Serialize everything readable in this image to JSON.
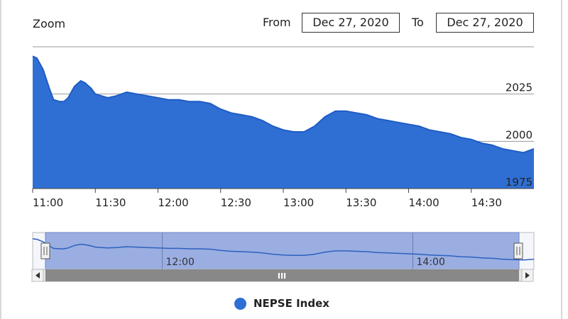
{
  "header": {
    "zoom_label": "Zoom",
    "from_label": "From",
    "from_value": "Dec 27, 2020",
    "to_label": "To",
    "to_value": "Dec 27, 2020"
  },
  "navigator": {
    "tick_labels": [
      "12:00",
      "14:00"
    ],
    "scroll_grip": "III"
  },
  "legend": {
    "label": "NEPSE Index"
  },
  "colors": {
    "series": "#2f6fd4",
    "navigator_fill": "#9aaee2",
    "scrollbar": "#888888"
  },
  "chart_data": {
    "type": "area",
    "series": [
      {
        "name": "NEPSE Index"
      }
    ],
    "x_tick_labels": [
      "11:00",
      "11:30",
      "12:00",
      "12:30",
      "13:00",
      "13:30",
      "14:00",
      "14:30"
    ],
    "y_tick_labels": [
      "2025",
      "2000",
      "1975"
    ],
    "ylim": [
      1975,
      2050
    ],
    "grid": true,
    "points": [
      [
        "11:00",
        2045
      ],
      [
        "11:02",
        2044
      ],
      [
        "11:05",
        2038
      ],
      [
        "11:08",
        2028
      ],
      [
        "11:10",
        2022
      ],
      [
        "11:13",
        2021
      ],
      [
        "11:15",
        2021
      ],
      [
        "11:17",
        2023
      ],
      [
        "11:20",
        2029
      ],
      [
        "11:23",
        2032
      ],
      [
        "11:25",
        2031
      ],
      [
        "11:28",
        2028
      ],
      [
        "11:30",
        2025
      ],
      [
        "11:33",
        2024
      ],
      [
        "11:36",
        2023
      ],
      [
        "11:40",
        2024
      ],
      [
        "11:45",
        2026
      ],
      [
        "11:50",
        2025
      ],
      [
        "11:55",
        2024
      ],
      [
        "12:00",
        2023
      ],
      [
        "12:05",
        2022
      ],
      [
        "12:10",
        2022
      ],
      [
        "12:15",
        2021
      ],
      [
        "12:20",
        2021
      ],
      [
        "12:25",
        2020
      ],
      [
        "12:30",
        2017
      ],
      [
        "12:35",
        2015
      ],
      [
        "12:40",
        2014
      ],
      [
        "12:45",
        2013
      ],
      [
        "12:50",
        2011
      ],
      [
        "12:55",
        2008
      ],
      [
        "13:00",
        2006
      ],
      [
        "13:05",
        2005
      ],
      [
        "13:10",
        2005
      ],
      [
        "13:15",
        2008
      ],
      [
        "13:20",
        2013
      ],
      [
        "13:25",
        2016
      ],
      [
        "13:30",
        2016
      ],
      [
        "13:35",
        2015
      ],
      [
        "13:40",
        2014
      ],
      [
        "13:45",
        2012
      ],
      [
        "13:50",
        2011
      ],
      [
        "13:55",
        2010
      ],
      [
        "14:00",
        2009
      ],
      [
        "14:05",
        2008
      ],
      [
        "14:10",
        2006
      ],
      [
        "14:15",
        2005
      ],
      [
        "14:20",
        2004
      ],
      [
        "14:25",
        2002
      ],
      [
        "14:30",
        2001
      ],
      [
        "14:35",
        1999
      ],
      [
        "14:40",
        1998
      ],
      [
        "14:45",
        1996
      ],
      [
        "14:50",
        1995
      ],
      [
        "14:55",
        1994
      ],
      [
        "15:00",
        1996
      ]
    ]
  }
}
